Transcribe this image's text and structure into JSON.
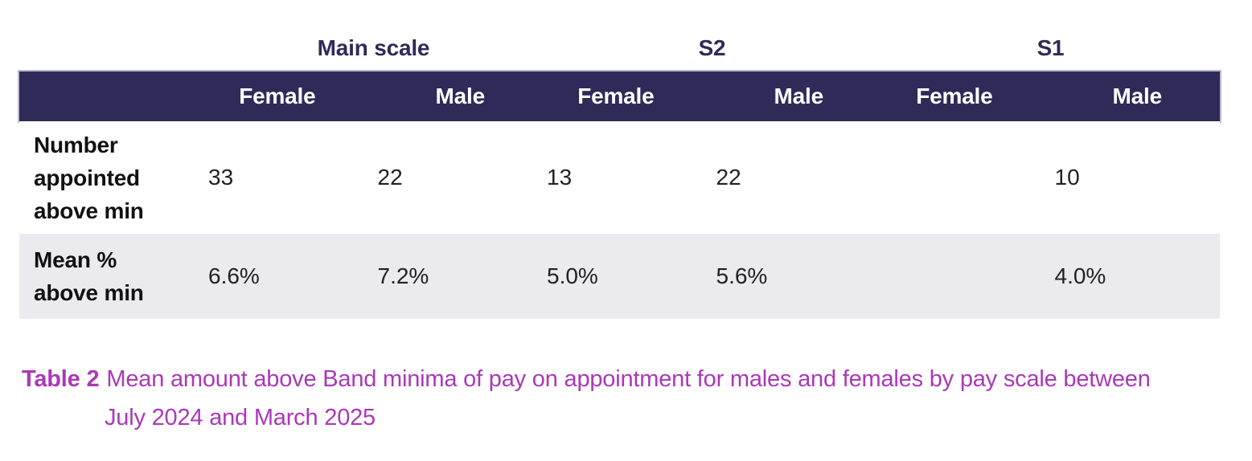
{
  "table": {
    "group_headers": [
      {
        "label": "Main scale"
      },
      {
        "label": "S2"
      },
      {
        "label": "S1"
      }
    ],
    "column_headers": [
      "Female",
      "Male",
      "Female",
      "Male",
      "Female",
      "Male"
    ],
    "rows": [
      {
        "label": "Number appointed above min",
        "values": [
          "33",
          "22",
          "13",
          "22",
          "",
          "10"
        ]
      },
      {
        "label": "Mean % above min",
        "values": [
          "6.6%",
          "7.2%",
          "5.0%",
          "5.6%",
          "",
          "4.0%"
        ]
      }
    ]
  },
  "caption": {
    "label": "Table 2",
    "line1": "Mean amount above Band minima of pay on appointment for males and females by pay scale between",
    "line2": "July 2024 and March 2025"
  },
  "colors": {
    "header_bar_background": "#2E2B59",
    "header_bar_text": "#FFFFFF",
    "group_header_text": "#2E2B59",
    "alt_row_background": "#EBEBEF",
    "body_text": "#212121",
    "caption_text": "#AA38B8"
  }
}
